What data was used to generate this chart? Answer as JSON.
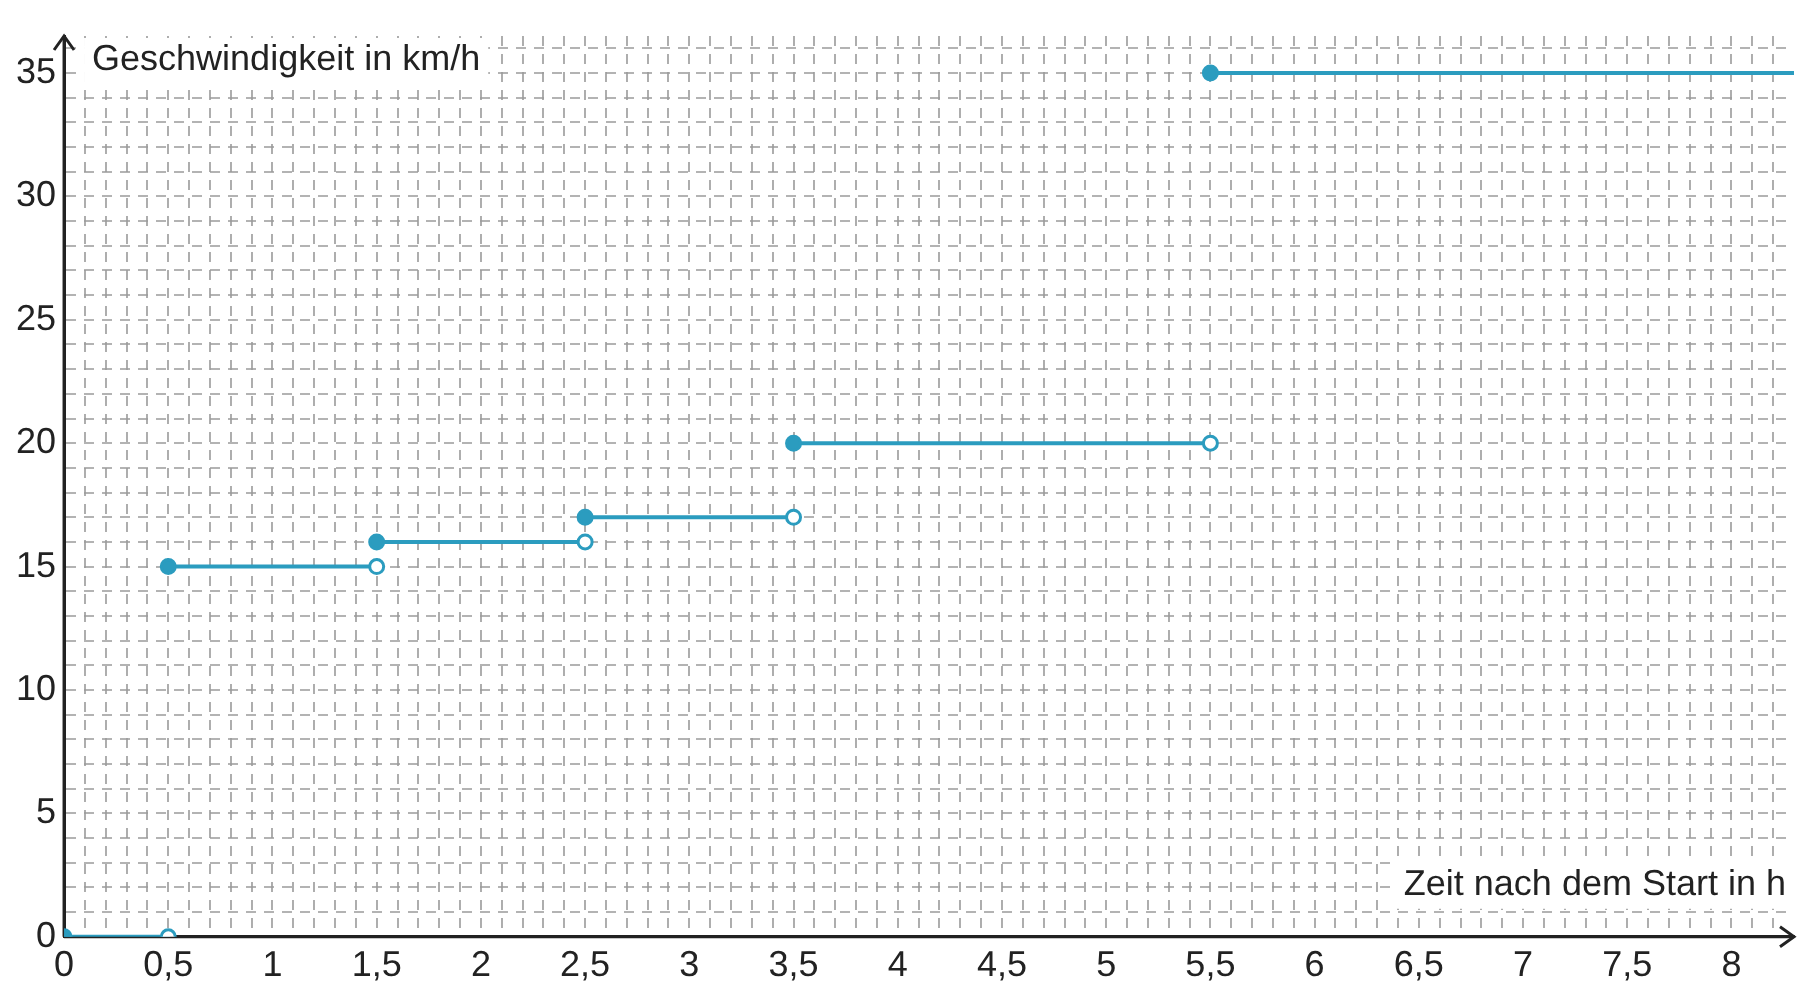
{
  "chart_data": {
    "type": "line",
    "xlabel": "Zeit nach dem Start in h",
    "ylabel": "Geschwindigkeit in km/h",
    "series": [
      {
        "color": "#2b9cbf",
        "x": [
          0,
          0.5
        ],
        "values": [
          0,
          0
        ]
      },
      {
        "color": "#2b9cbf",
        "x": [
          0.5,
          1.5
        ],
        "values": [
          15,
          15
        ]
      },
      {
        "color": "#2b9cbf",
        "x": [
          1.5,
          2.5
        ],
        "values": [
          16,
          16
        ]
      },
      {
        "color": "#2b9cbf",
        "x": [
          2.5,
          3.5
        ],
        "values": [
          17,
          17
        ]
      },
      {
        "color": "#2b9cbf",
        "x": [
          3.5,
          5.5
        ],
        "values": [
          20,
          20
        ]
      },
      {
        "color": "#2b9cbf",
        "x": [
          5.5,
          8.3
        ],
        "values": [
          35,
          35
        ]
      }
    ],
    "marker": "circle",
    "grid": true,
    "legend": false,
    "xlim": [
      0,
      8.3
    ],
    "ylim": [
      0,
      36.5
    ],
    "xticks": [
      0,
      {
        "value": 0.1,
        "label": null
      },
      {
        "value": 0.2,
        "label": null
      },
      {
        "value": 0.3,
        "label": null
      },
      {
        "value": 0.4,
        "label": null
      },
      {
        "value": 0.5,
        "label": "0,5"
      },
      {
        "value": 0.6,
        "label": null
      },
      {
        "value": 0.7,
        "label": null
      },
      {
        "value": 0.8,
        "label": null
      },
      {
        "value": 0.9,
        "label": null
      },
      1,
      {
        "value": 1.1,
        "label": null
      },
      {
        "value": 1.2,
        "label": null
      },
      {
        "value": 1.3,
        "label": null
      },
      {
        "value": 1.4,
        "label": null
      },
      {
        "value": 1.5,
        "label": "1,5"
      },
      {
        "value": 1.6,
        "label": null
      },
      {
        "value": 1.7,
        "label": null
      },
      {
        "value": 1.8,
        "label": null
      },
      {
        "value": 1.9,
        "label": null
      },
      2,
      {
        "value": 2.1,
        "label": null
      },
      {
        "value": 2.2,
        "label": null
      },
      {
        "value": 2.3,
        "label": null
      },
      {
        "value": 2.4,
        "label": null
      },
      {
        "value": 2.5,
        "label": "2,5"
      },
      {
        "value": 2.6,
        "label": null
      },
      {
        "value": 2.7,
        "label": null
      },
      {
        "value": 2.8,
        "label": null
      },
      {
        "value": 2.9,
        "label": null
      },
      3,
      {
        "value": 3.1,
        "label": null
      },
      {
        "value": 3.2,
        "label": null
      },
      {
        "value": 3.3,
        "label": null
      },
      {
        "value": 3.4,
        "label": null
      },
      {
        "value": 3.5,
        "label": "3,5"
      },
      {
        "value": 3.6,
        "label": null
      },
      {
        "value": 3.7,
        "label": null
      },
      {
        "value": 3.8,
        "label": null
      },
      {
        "value": 3.9,
        "label": null
      },
      4,
      {
        "value": 4.1,
        "label": null
      },
      {
        "value": 4.2,
        "label": null
      },
      {
        "value": 4.3,
        "label": null
      },
      {
        "value": 4.4,
        "label": null
      },
      {
        "value": 4.5,
        "label": "4,5"
      },
      {
        "value": 4.6,
        "label": null
      },
      {
        "value": 4.7,
        "label": null
      },
      {
        "value": 4.8,
        "label": null
      },
      {
        "value": 4.9,
        "label": null
      },
      5,
      {
        "value": 5.1,
        "label": null
      },
      {
        "value": 5.2,
        "label": null
      },
      {
        "value": 5.3,
        "label": null
      },
      {
        "value": 5.4,
        "label": null
      },
      {
        "value": 5.5,
        "label": "5,5"
      },
      {
        "value": 5.6,
        "label": null
      },
      {
        "value": 5.7,
        "label": null
      },
      {
        "value": 5.8,
        "label": null
      },
      {
        "value": 5.9,
        "label": null
      },
      6,
      {
        "value": 6.1,
        "label": null
      },
      {
        "value": 6.2,
        "label": null
      },
      {
        "value": 6.3,
        "label": null
      },
      {
        "value": 6.4,
        "label": null
      },
      {
        "value": 6.5,
        "label": "6,5"
      },
      {
        "value": 6.6,
        "label": null
      },
      {
        "value": 6.7,
        "label": null
      },
      {
        "value": 6.8,
        "label": null
      },
      {
        "value": 6.9,
        "label": null
      },
      7,
      {
        "value": 7.1,
        "label": null
      },
      {
        "value": 7.2,
        "label": null
      },
      {
        "value": 7.3,
        "label": null
      },
      {
        "value": 7.4,
        "label": null
      },
      {
        "value": 7.5,
        "label": "7,5"
      },
      {
        "value": 7.6,
        "label": null
      },
      {
        "value": 7.7,
        "label": null
      },
      {
        "value": 7.8,
        "label": null
      },
      {
        "value": 7.9,
        "label": null
      },
      8,
      {
        "value": 8.1,
        "label": null
      },
      {
        "value": 8.2,
        "label": null
      }
    ],
    "yticks": [
      0,
      {
        "value": 1,
        "label": null
      },
      {
        "value": 2,
        "label": null
      },
      {
        "value": 3,
        "label": null
      },
      {
        "value": 4,
        "label": null
      },
      5,
      {
        "value": 6,
        "label": null
      },
      {
        "value": 7,
        "label": null
      },
      {
        "value": 8,
        "label": null
      },
      {
        "value": 9,
        "label": null
      },
      10,
      {
        "value": 11,
        "label": null
      },
      {
        "value": 12,
        "label": null
      },
      {
        "value": 13,
        "label": null
      },
      {
        "value": 14,
        "label": null
      },
      15,
      {
        "value": 16,
        "label": null
      },
      {
        "value": 17,
        "label": null
      },
      {
        "value": 18,
        "label": null
      },
      {
        "value": 19,
        "label": null
      },
      20,
      {
        "value": 21,
        "label": null
      },
      {
        "value": 22,
        "label": null
      },
      {
        "value": 23,
        "label": null
      },
      {
        "value": 24,
        "label": null
      },
      25,
      {
        "value": 26,
        "label": null
      },
      {
        "value": 27,
        "label": null
      },
      {
        "value": 28,
        "label": null
      },
      {
        "value": 29,
        "label": null
      },
      30,
      {
        "value": 31,
        "label": null
      },
      {
        "value": 32,
        "label": null
      },
      {
        "value": 33,
        "label": null
      },
      {
        "value": 34,
        "label": null
      },
      35,
      {
        "value": 36,
        "label": null
      }
    ]
  }
}
